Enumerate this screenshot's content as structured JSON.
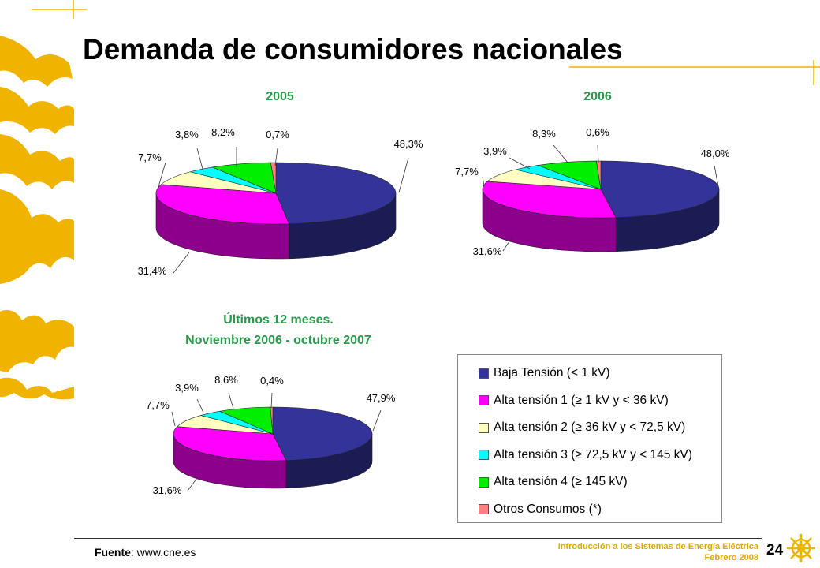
{
  "page": {
    "title": "Demanda de consumidores nacionales",
    "source_label": "Fuente",
    "source_value": ": www.cne.es",
    "course_line1": "Introducción a los Sistemas de Energía Eléctrica",
    "course_line2": "Febrero 2008",
    "page_number": "24"
  },
  "colors": {
    "accent": "#f0b400",
    "baja": "#333399",
    "at1": "#ff00ff",
    "at2": "#ffffc0",
    "at3": "#00ffff",
    "at4": "#00ee00",
    "otros": "#ff8080"
  },
  "legend": [
    {
      "label": "Baja Tensión (< 1 kV)",
      "color": "#333399"
    },
    {
      "label": "Alta tensión 1 (≥  1 kV y  < 36 kV)",
      "color": "#ff00ff"
    },
    {
      "label": "Alta tensión 2 (≥  36 kV y < 72,5 kV)",
      "color": "#ffffc0"
    },
    {
      "label": "Alta tensión 3 (≥ 72,5 kV y < 145 kV)",
      "color": "#00ffff"
    },
    {
      "label": "Alta tensión 4 (≥ 145 kV)",
      "color": "#00ee00"
    },
    {
      "label": "Otros Consumos (*)",
      "color": "#ff8080"
    }
  ],
  "chart_data": [
    {
      "type": "pie",
      "title": "2005",
      "categories": [
        "Baja Tensión (< 1 kV)",
        "Alta tensión 1 (≥  1 kV y  < 36 kV)",
        "Alta tensión 2 (≥  36 kV y < 72,5 kV)",
        "Alta tensión 3 (≥ 72,5 kV y < 145 kV)",
        "Alta tensión 4 (≥ 145 kV)",
        "Otros Consumos (*)"
      ],
      "values": [
        48.3,
        31.4,
        7.7,
        3.8,
        8.2,
        0.7
      ],
      "labels": [
        "48,3%",
        "31,4%",
        "7,7%",
        "3,8%",
        "8,2%",
        "0,7%"
      ]
    },
    {
      "type": "pie",
      "title": "2006",
      "categories": [
        "Baja Tensión (< 1 kV)",
        "Alta tensión 1 (≥  1 kV y  < 36 kV)",
        "Alta tensión 2 (≥  36 kV y < 72,5 kV)",
        "Alta tensión 3 (≥ 72,5 kV y < 145 kV)",
        "Alta tensión 4 (≥ 145 kV)",
        "Otros Consumos (*)"
      ],
      "values": [
        48.0,
        31.6,
        7.7,
        3.9,
        8.3,
        0.6
      ],
      "labels": [
        "48,0%",
        "31,6%",
        "7,7%",
        "3,9%",
        "8,3%",
        "0,6%"
      ]
    },
    {
      "type": "pie",
      "title": [
        "Últimos 12 meses.",
        "Noviembre 2006 -  octubre 2007"
      ],
      "categories": [
        "Baja Tensión (< 1 kV)",
        "Alta tensión 1 (≥  1 kV y  < 36 kV)",
        "Alta tensión 2 (≥  36 kV y < 72,5 kV)",
        "Alta tensión 3 (≥ 72,5 kV y < 145 kV)",
        "Alta tensión 4 (≥ 145 kV)",
        "Otros Consumos (*)"
      ],
      "values": [
        47.9,
        31.6,
        7.7,
        3.9,
        8.6,
        0.4
      ],
      "labels": [
        "47,9%",
        "31,6%",
        "7,7%",
        "3,9%",
        "8,6%",
        "0,4%"
      ]
    }
  ]
}
